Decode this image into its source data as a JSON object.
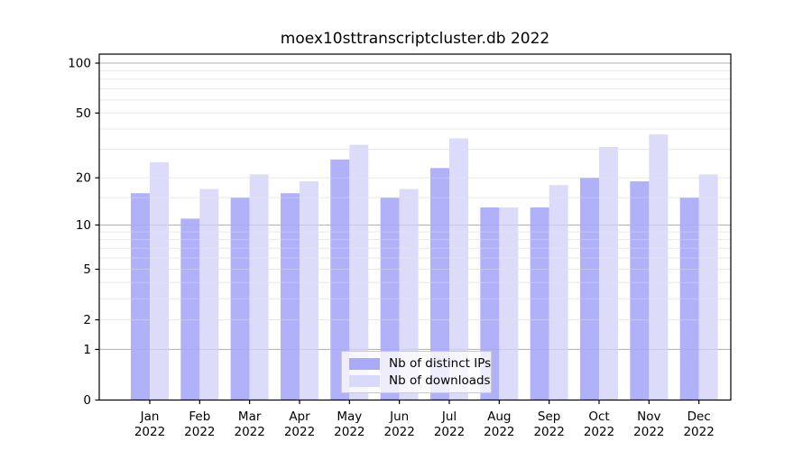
{
  "chart_data": {
    "type": "bar",
    "title": "moex10sttranscriptcluster.db 2022",
    "categories": [
      "Jan",
      "Feb",
      "Mar",
      "Apr",
      "May",
      "Jun",
      "Jul",
      "Aug",
      "Sep",
      "Oct",
      "Nov",
      "Dec"
    ],
    "year_label": "2022",
    "series": [
      {
        "name": "Nb of distinct IPs",
        "color": "#aaaaf8",
        "values": [
          16,
          11,
          15,
          16,
          26,
          15,
          23,
          13,
          13,
          20,
          19,
          15
        ]
      },
      {
        "name": "Nb of downloads",
        "color": "#d9d9fa",
        "values": [
          25,
          17,
          21,
          19,
          32,
          17,
          35,
          13,
          18,
          31,
          37,
          21
        ]
      }
    ],
    "y_axis": {
      "scale": "log1p",
      "tick_labels": [
        0,
        1,
        2,
        5,
        10,
        20,
        50,
        100
      ],
      "major_gridlines": [
        1,
        10,
        100
      ],
      "minor_gridlines": [
        2,
        3,
        4,
        5,
        6,
        7,
        8,
        9,
        15,
        20,
        30,
        40,
        50,
        60,
        70,
        80,
        90
      ],
      "range": [
        0,
        100
      ]
    },
    "x_axis": {
      "label": "",
      "tick_count": 12
    },
    "legend_position": "bottom-center",
    "grid": true,
    "colors": {
      "background": "#ffffff",
      "major_gridline": "#b2b2b2",
      "minor_gridline": "#e9e9e9",
      "axis": "#000000",
      "text": "#000000",
      "legend_border": "#cccccc"
    }
  }
}
